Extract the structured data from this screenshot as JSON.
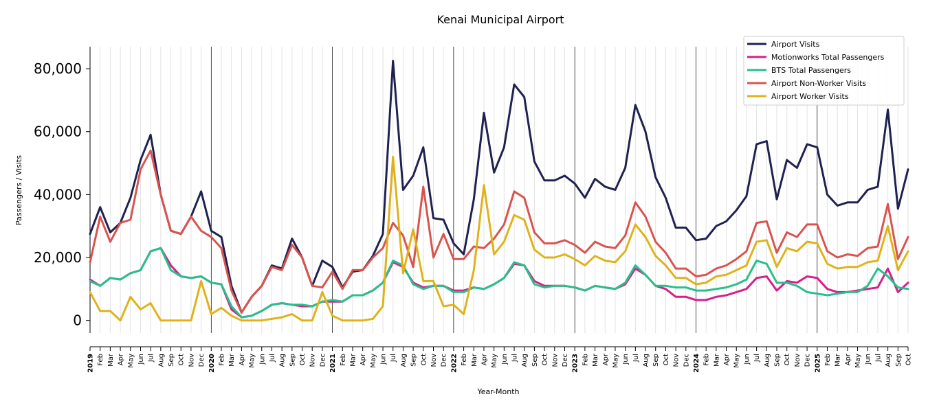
{
  "chart_data": {
    "type": "line",
    "title": "Kenai Municipal Airport",
    "xlabel": "Year-Month",
    "ylabel": "Passengers / Visits",
    "ylim": [
      -4000,
      87000
    ],
    "yticks": [
      0,
      20000,
      40000,
      60000,
      80000
    ],
    "ytick_labels": [
      "0",
      "20,000",
      "40,000",
      "60,000",
      "80,000"
    ],
    "legend_position": "top-right",
    "x_labels": [
      "2019",
      "Feb",
      "Mar",
      "Apr",
      "May",
      "Jun",
      "Jul",
      "Aug",
      "Sep",
      "Oct",
      "Nov",
      "Dec",
      "2020",
      "Feb",
      "Mar",
      "Apr",
      "May",
      "Jun",
      "Jul",
      "Aug",
      "Sep",
      "Oct",
      "Nov",
      "Dec",
      "2021",
      "Feb",
      "Mar",
      "Apr",
      "May",
      "Jun",
      "Jul",
      "Aug",
      "Sep",
      "Oct",
      "Nov",
      "Dec",
      "2022",
      "Feb",
      "Mar",
      "Apr",
      "May",
      "Jun",
      "Jul",
      "Aug",
      "Sep",
      "Oct",
      "Nov",
      "Dec",
      "2023",
      "Feb",
      "Mar",
      "Apr",
      "May",
      "Jun",
      "Jul",
      "Aug",
      "Sep",
      "Oct",
      "Nov",
      "Dec",
      "2024",
      "Feb",
      "Mar",
      "Apr",
      "May",
      "Jun",
      "Jul",
      "Aug",
      "Sep",
      "Oct",
      "Nov",
      "Dec",
      "2025",
      "Feb",
      "Mar",
      "Apr",
      "May",
      "Jun",
      "Jul",
      "Aug",
      "Sep",
      "Oct"
    ],
    "series": [
      {
        "name": "Airport Visits",
        "color": "#1f2150",
        "values": [
          27500,
          36000,
          28000,
          31000,
          39000,
          51000,
          59000,
          40000,
          28500,
          27500,
          33000,
          41000,
          28500,
          26500,
          11000,
          2500,
          7500,
          11000,
          17500,
          16500,
          26000,
          20000,
          11000,
          19000,
          17000,
          10500,
          15500,
          16000,
          20500,
          27500,
          82500,
          41500,
          46000,
          55000,
          32500,
          32000,
          24500,
          21000,
          38500,
          66000,
          47000,
          55000,
          75000,
          71000,
          50500,
          44500,
          44500,
          46000,
          43500,
          39000,
          45000,
          42500,
          41500,
          48500,
          68500,
          60000,
          45500,
          39000,
          29500,
          29500,
          25500,
          26000,
          30000,
          31500,
          35000,
          39500,
          56000,
          57000,
          38500,
          51000,
          48500,
          56000,
          55000,
          40000,
          36500,
          37500,
          37500,
          41500,
          42500,
          67000,
          35500,
          48000
        ]
      },
      {
        "name": "Motionworks Total Passengers",
        "color": "#d61f8a",
        "values": [
          13000,
          11000,
          13500,
          13000,
          15000,
          16000,
          22000,
          23000,
          17500,
          14000,
          13500,
          14000,
          12000,
          11500,
          3500,
          1000,
          1500,
          3000,
          5000,
          5500,
          5000,
          4500,
          4500,
          6000,
          6000,
          6000,
          8000,
          8000,
          9500,
          12000,
          18500,
          17000,
          12000,
          10500,
          11000,
          11000,
          9500,
          9500,
          10500,
          10000,
          11500,
          13500,
          18000,
          17500,
          12500,
          11000,
          11000,
          11000,
          10500,
          9500,
          11000,
          10500,
          10000,
          11500,
          16500,
          14500,
          11000,
          10000,
          7500,
          7500,
          6500,
          6500,
          7500,
          8000,
          9000,
          10000,
          13500,
          14000,
          9500,
          12500,
          12000,
          14000,
          13500,
          10000,
          9000,
          9000,
          9500,
          10000,
          10500,
          16500,
          9000,
          12000
        ]
      },
      {
        "name": "BTS Total Passengers",
        "color": "#26c08a",
        "values": [
          12500,
          11000,
          13500,
          13000,
          15000,
          16000,
          22000,
          23000,
          16000,
          14000,
          13500,
          14000,
          12000,
          11500,
          4500,
          1000,
          1500,
          3000,
          5000,
          5500,
          5000,
          5000,
          4500,
          6000,
          6500,
          6000,
          8000,
          8000,
          9500,
          12000,
          19000,
          17500,
          11500,
          10000,
          11000,
          11000,
          9000,
          9000,
          10500,
          10000,
          11500,
          13500,
          18500,
          17500,
          11500,
          10500,
          11000,
          11000,
          10500,
          9500,
          11000,
          10500,
          10000,
          12000,
          17500,
          14500,
          11000,
          11000,
          10500,
          10500,
          9500,
          9500,
          10000,
          10500,
          11500,
          13000,
          19000,
          18000,
          12000,
          12000,
          11000,
          9000,
          8500,
          8000,
          8500,
          9000,
          9000,
          11000,
          16500,
          14000,
          10500,
          10000
        ]
      },
      {
        "name": "Airport Non-Worker Visits",
        "color": "#d9534f",
        "values": [
          18500,
          33000,
          25000,
          31000,
          32000,
          48000,
          54000,
          40000,
          28500,
          27500,
          33000,
          28500,
          26500,
          23000,
          9500,
          2500,
          7500,
          11000,
          17000,
          16000,
          24000,
          20000,
          11000,
          10500,
          15500,
          10000,
          16000,
          16000,
          20000,
          23000,
          31000,
          27000,
          17000,
          42500,
          20000,
          27500,
          19500,
          19500,
          23500,
          23000,
          26000,
          30500,
          41000,
          39000,
          28000,
          24500,
          24500,
          25500,
          24000,
          21500,
          25000,
          23500,
          23000,
          27000,
          37500,
          33000,
          25000,
          21500,
          16500,
          16500,
          14000,
          14500,
          16500,
          17500,
          19500,
          22000,
          31000,
          31500,
          21500,
          28000,
          26500,
          30500,
          30500,
          22000,
          20000,
          21000,
          20500,
          23000,
          23500,
          37000,
          19500,
          26500
        ]
      },
      {
        "name": "Airport Worker Visits",
        "color": "#e0b21a",
        "values": [
          9000,
          3000,
          3000,
          0,
          7500,
          3500,
          5500,
          0,
          0,
          0,
          0,
          12500,
          2000,
          4000,
          1500,
          0,
          0,
          0,
          500,
          1000,
          2000,
          0,
          0,
          9000,
          1500,
          0,
          0,
          0,
          500,
          4500,
          52000,
          15000,
          29000,
          12500,
          12500,
          4500,
          5000,
          2000,
          16000,
          43000,
          21000,
          25000,
          33500,
          32000,
          22500,
          20000,
          20000,
          21000,
          19500,
          17500,
          20500,
          19000,
          18500,
          22000,
          30500,
          26500,
          20500,
          17500,
          13500,
          13500,
          11500,
          12000,
          14000,
          14500,
          16000,
          17500,
          25000,
          25500,
          17000,
          23000,
          22000,
          25000,
          24500,
          18000,
          16500,
          17000,
          17000,
          18500,
          19000,
          30000,
          16000,
          22000
        ]
      }
    ]
  }
}
